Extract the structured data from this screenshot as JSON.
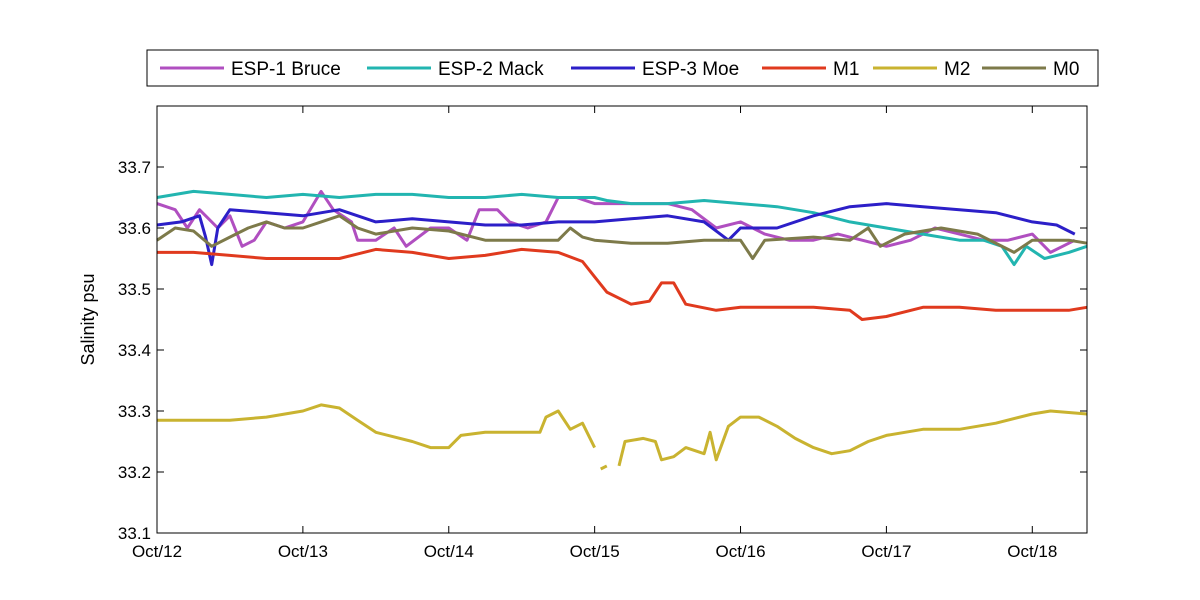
{
  "chart_data": {
    "type": "line",
    "title": "",
    "xlabel": "",
    "ylabel": "Salinity psu",
    "xlim": [
      "2012-10-12 00:00",
      "2012-10-18 09:00"
    ],
    "ylim": [
      33.1,
      33.8
    ],
    "x_tick_labels": [
      "Oct/12",
      "Oct/13",
      "Oct/14",
      "Oct/15",
      "Oct/16",
      "Oct/17",
      "Oct/18"
    ],
    "x_tick_dates": [
      "2012-10-12",
      "2012-10-13",
      "2012-10-14",
      "2012-10-15",
      "2012-10-16",
      "2012-10-17",
      "2012-10-18"
    ],
    "y_ticks": [
      33.1,
      33.2,
      33.3,
      33.4,
      33.5,
      33.6,
      33.7
    ],
    "y_tick_labels": [
      "33.1",
      "33.2",
      "33.3",
      "33.4",
      "33.5",
      "33.6",
      "33.7"
    ],
    "grid": false,
    "legend_position": "top-outside",
    "series": [
      {
        "name": "ESP-1 Bruce",
        "color": "#b04fc0",
        "points": [
          [
            "2012-10-12 00:00",
            33.64
          ],
          [
            "2012-10-12 03:00",
            33.63
          ],
          [
            "2012-10-12 05:00",
            33.6
          ],
          [
            "2012-10-12 07:00",
            33.63
          ],
          [
            "2012-10-12 10:00",
            33.6
          ],
          [
            "2012-10-12 12:00",
            33.62
          ],
          [
            "2012-10-12 14:00",
            33.57
          ],
          [
            "2012-10-12 16:00",
            33.58
          ],
          [
            "2012-10-12 18:00",
            33.61
          ],
          [
            "2012-10-12 21:00",
            33.6
          ],
          [
            "2012-10-13 00:00",
            33.61
          ],
          [
            "2012-10-13 03:00",
            33.66
          ],
          [
            "2012-10-13 05:00",
            33.63
          ],
          [
            "2012-10-13 08:00",
            33.61
          ],
          [
            "2012-10-13 09:00",
            33.58
          ],
          [
            "2012-10-13 12:00",
            33.58
          ],
          [
            "2012-10-13 15:00",
            33.6
          ],
          [
            "2012-10-13 17:00",
            33.57
          ],
          [
            "2012-10-13 21:00",
            33.6
          ],
          [
            "2012-10-14 00:00",
            33.6
          ],
          [
            "2012-10-14 03:00",
            33.58
          ],
          [
            "2012-10-14 05:00",
            33.63
          ],
          [
            "2012-10-14 08:00",
            33.63
          ],
          [
            "2012-10-14 10:00",
            33.61
          ],
          [
            "2012-10-14 13:00",
            33.6
          ],
          [
            "2012-10-14 16:00",
            33.61
          ],
          [
            "2012-10-14 18:00",
            33.65
          ],
          [
            "2012-10-14 21:00",
            33.65
          ],
          [
            "2012-10-15 00:00",
            33.64
          ],
          [
            "2012-10-15 04:00",
            33.64
          ],
          [
            "2012-10-15 08:00",
            33.64
          ],
          [
            "2012-10-15 12:00",
            33.64
          ],
          [
            "2012-10-15 16:00",
            33.63
          ],
          [
            "2012-10-15 20:00",
            33.6
          ],
          [
            "2012-10-16 00:00",
            33.61
          ],
          [
            "2012-10-16 04:00",
            33.59
          ],
          [
            "2012-10-16 08:00",
            33.58
          ],
          [
            "2012-10-16 12:00",
            33.58
          ],
          [
            "2012-10-16 16:00",
            33.59
          ],
          [
            "2012-10-16 20:00",
            33.58
          ],
          [
            "2012-10-17 00:00",
            33.57
          ],
          [
            "2012-10-17 04:00",
            33.58
          ],
          [
            "2012-10-17 08:00",
            33.6
          ],
          [
            "2012-10-17 12:00",
            33.59
          ],
          [
            "2012-10-17 16:00",
            33.58
          ],
          [
            "2012-10-17 20:00",
            33.58
          ],
          [
            "2012-10-18 00:00",
            33.59
          ],
          [
            "2012-10-18 03:00",
            33.56
          ],
          [
            "2012-10-18 05:00",
            33.57
          ],
          [
            "2012-10-18 07:00",
            33.58
          ]
        ]
      },
      {
        "name": "ESP-2 Mack",
        "color": "#22b5b0",
        "points": [
          [
            "2012-10-12 00:00",
            33.65
          ],
          [
            "2012-10-12 06:00",
            33.66
          ],
          [
            "2012-10-12 12:00",
            33.655
          ],
          [
            "2012-10-12 18:00",
            33.65
          ],
          [
            "2012-10-13 00:00",
            33.655
          ],
          [
            "2012-10-13 06:00",
            33.65
          ],
          [
            "2012-10-13 12:00",
            33.655
          ],
          [
            "2012-10-13 18:00",
            33.655
          ],
          [
            "2012-10-14 00:00",
            33.65
          ],
          [
            "2012-10-14 06:00",
            33.65
          ],
          [
            "2012-10-14 12:00",
            33.655
          ],
          [
            "2012-10-14 18:00",
            33.65
          ],
          [
            "2012-10-15 00:00",
            33.65
          ],
          [
            "2012-10-15 02:00",
            33.645
          ],
          [
            "2012-10-15 06:00",
            33.64
          ],
          [
            "2012-10-15 12:00",
            33.64
          ],
          [
            "2012-10-15 18:00",
            33.645
          ],
          [
            "2012-10-16 00:00",
            33.64
          ],
          [
            "2012-10-16 06:00",
            33.635
          ],
          [
            "2012-10-16 12:00",
            33.625
          ],
          [
            "2012-10-16 18:00",
            33.61
          ],
          [
            "2012-10-17 00:00",
            33.6
          ],
          [
            "2012-10-17 06:00",
            33.59
          ],
          [
            "2012-10-17 12:00",
            33.58
          ],
          [
            "2012-10-17 16:00",
            33.58
          ],
          [
            "2012-10-17 19:00",
            33.57
          ],
          [
            "2012-10-17 21:00",
            33.54
          ],
          [
            "2012-10-17 23:00",
            33.57
          ],
          [
            "2012-10-18 02:00",
            33.55
          ],
          [
            "2012-10-18 06:00",
            33.56
          ],
          [
            "2012-10-18 09:00",
            33.57
          ]
        ]
      },
      {
        "name": "ESP-3 Moe",
        "color": "#2c1fc8",
        "points": [
          [
            "2012-10-12 00:00",
            33.605
          ],
          [
            "2012-10-12 04:00",
            33.61
          ],
          [
            "2012-10-12 07:00",
            33.62
          ],
          [
            "2012-10-12 08:00",
            33.585
          ],
          [
            "2012-10-12 09:00",
            33.54
          ],
          [
            "2012-10-12 10:00",
            33.6
          ],
          [
            "2012-10-12 12:00",
            33.63
          ],
          [
            "2012-10-12 18:00",
            33.625
          ],
          [
            "2012-10-13 00:00",
            33.62
          ],
          [
            "2012-10-13 06:00",
            33.63
          ],
          [
            "2012-10-13 12:00",
            33.61
          ],
          [
            "2012-10-13 18:00",
            33.615
          ],
          [
            "2012-10-14 00:00",
            33.61
          ],
          [
            "2012-10-14 06:00",
            33.605
          ],
          [
            "2012-10-14 12:00",
            33.605
          ],
          [
            "2012-10-14 18:00",
            33.61
          ],
          [
            "2012-10-15 00:00",
            33.61
          ],
          [
            "2012-10-15 06:00",
            33.615
          ],
          [
            "2012-10-15 12:00",
            33.62
          ],
          [
            "2012-10-15 18:00",
            33.61
          ],
          [
            "2012-10-15 22:00",
            33.58
          ],
          [
            "2012-10-16 00:00",
            33.6
          ],
          [
            "2012-10-16 06:00",
            33.6
          ],
          [
            "2012-10-16 12:00",
            33.62
          ],
          [
            "2012-10-16 18:00",
            33.635
          ],
          [
            "2012-10-17 00:00",
            33.64
          ],
          [
            "2012-10-17 06:00",
            33.635
          ],
          [
            "2012-10-17 12:00",
            33.63
          ],
          [
            "2012-10-17 18:00",
            33.625
          ],
          [
            "2012-10-18 00:00",
            33.61
          ],
          [
            "2012-10-18 04:00",
            33.605
          ],
          [
            "2012-10-18 07:00",
            33.59
          ]
        ]
      },
      {
        "name": "M1",
        "color": "#e03a1e",
        "points": [
          [
            "2012-10-12 00:00",
            33.56
          ],
          [
            "2012-10-12 06:00",
            33.56
          ],
          [
            "2012-10-12 12:00",
            33.555
          ],
          [
            "2012-10-12 18:00",
            33.55
          ],
          [
            "2012-10-13 00:00",
            33.55
          ],
          [
            "2012-10-13 06:00",
            33.55
          ],
          [
            "2012-10-13 12:00",
            33.565
          ],
          [
            "2012-10-13 18:00",
            33.56
          ],
          [
            "2012-10-14 00:00",
            33.55
          ],
          [
            "2012-10-14 06:00",
            33.555
          ],
          [
            "2012-10-14 12:00",
            33.565
          ],
          [
            "2012-10-14 18:00",
            33.56
          ],
          [
            "2012-10-14 22:00",
            33.545
          ],
          [
            "2012-10-15 00:00",
            33.52
          ],
          [
            "2012-10-15 02:00",
            33.495
          ],
          [
            "2012-10-15 06:00",
            33.475
          ],
          [
            "2012-10-15 09:00",
            33.48
          ],
          [
            "2012-10-15 11:00",
            33.51
          ],
          [
            "2012-10-15 13:00",
            33.51
          ],
          [
            "2012-10-15 15:00",
            33.475
          ],
          [
            "2012-10-15 20:00",
            33.465
          ],
          [
            "2012-10-16 00:00",
            33.47
          ],
          [
            "2012-10-16 06:00",
            33.47
          ],
          [
            "2012-10-16 12:00",
            33.47
          ],
          [
            "2012-10-16 18:00",
            33.465
          ],
          [
            "2012-10-16 20:00",
            33.45
          ],
          [
            "2012-10-17 00:00",
            33.455
          ],
          [
            "2012-10-17 06:00",
            33.47
          ],
          [
            "2012-10-17 12:00",
            33.47
          ],
          [
            "2012-10-17 18:00",
            33.465
          ],
          [
            "2012-10-18 00:00",
            33.465
          ],
          [
            "2012-10-18 06:00",
            33.465
          ],
          [
            "2012-10-18 09:00",
            33.47
          ]
        ]
      },
      {
        "name": "M2",
        "color": "#c9b330",
        "points": [
          [
            "2012-10-12 00:00",
            33.285
          ],
          [
            "2012-10-12 06:00",
            33.285
          ],
          [
            "2012-10-12 12:00",
            33.285
          ],
          [
            "2012-10-12 18:00",
            33.29
          ],
          [
            "2012-10-13 00:00",
            33.3
          ],
          [
            "2012-10-13 03:00",
            33.31
          ],
          [
            "2012-10-13 06:00",
            33.305
          ],
          [
            "2012-10-13 09:00",
            33.285
          ],
          [
            "2012-10-13 12:00",
            33.265
          ],
          [
            "2012-10-13 18:00",
            33.25
          ],
          [
            "2012-10-13 21:00",
            33.24
          ],
          [
            "2012-10-14 00:00",
            33.24
          ],
          [
            "2012-10-14 02:00",
            33.26
          ],
          [
            "2012-10-14 06:00",
            33.265
          ],
          [
            "2012-10-14 12:00",
            33.265
          ],
          [
            "2012-10-14 15:00",
            33.265
          ],
          [
            "2012-10-14 16:00",
            33.29
          ],
          [
            "2012-10-14 18:00",
            33.3
          ],
          [
            "2012-10-14 20:00",
            33.27
          ],
          [
            "2012-10-14 22:00",
            33.28
          ],
          [
            "2012-10-15 00:00",
            33.24
          ],
          null,
          [
            "2012-10-15 01:00",
            33.205
          ],
          [
            "2012-10-15 02:00",
            33.21
          ],
          null,
          [
            "2012-10-15 04:00",
            33.21
          ],
          [
            "2012-10-15 05:00",
            33.25
          ],
          [
            "2012-10-15 08:00",
            33.255
          ],
          [
            "2012-10-15 10:00",
            33.25
          ],
          [
            "2012-10-15 11:00",
            33.22
          ],
          [
            "2012-10-15 13:00",
            33.225
          ],
          [
            "2012-10-15 15:00",
            33.24
          ],
          [
            "2012-10-15 18:00",
            33.23
          ],
          [
            "2012-10-15 19:00",
            33.265
          ],
          [
            "2012-10-15 20:00",
            33.22
          ],
          [
            "2012-10-15 22:00",
            33.275
          ],
          [
            "2012-10-16 00:00",
            33.29
          ],
          [
            "2012-10-16 03:00",
            33.29
          ],
          [
            "2012-10-16 06:00",
            33.275
          ],
          [
            "2012-10-16 09:00",
            33.255
          ],
          [
            "2012-10-16 12:00",
            33.24
          ],
          [
            "2012-10-16 15:00",
            33.23
          ],
          [
            "2012-10-16 18:00",
            33.235
          ],
          [
            "2012-10-16 21:00",
            33.25
          ],
          [
            "2012-10-17 00:00",
            33.26
          ],
          [
            "2012-10-17 06:00",
            33.27
          ],
          [
            "2012-10-17 12:00",
            33.27
          ],
          [
            "2012-10-17 18:00",
            33.28
          ],
          [
            "2012-10-18 00:00",
            33.295
          ],
          [
            "2012-10-18 03:00",
            33.3
          ],
          [
            "2012-10-18 09:00",
            33.295
          ]
        ]
      },
      {
        "name": "M0",
        "color": "#7d7a4a",
        "points": [
          [
            "2012-10-12 00:00",
            33.58
          ],
          [
            "2012-10-12 03:00",
            33.6
          ],
          [
            "2012-10-12 06:00",
            33.595
          ],
          [
            "2012-10-12 09:00",
            33.57
          ],
          [
            "2012-10-12 12:00",
            33.585
          ],
          [
            "2012-10-12 15:00",
            33.6
          ],
          [
            "2012-10-12 18:00",
            33.61
          ],
          [
            "2012-10-12 21:00",
            33.6
          ],
          [
            "2012-10-13 00:00",
            33.6
          ],
          [
            "2012-10-13 03:00",
            33.61
          ],
          [
            "2012-10-13 06:00",
            33.62
          ],
          [
            "2012-10-13 09:00",
            33.6
          ],
          [
            "2012-10-13 12:00",
            33.59
          ],
          [
            "2012-10-13 18:00",
            33.6
          ],
          [
            "2012-10-14 00:00",
            33.595
          ],
          [
            "2012-10-14 06:00",
            33.58
          ],
          [
            "2012-10-14 12:00",
            33.58
          ],
          [
            "2012-10-14 18:00",
            33.58
          ],
          [
            "2012-10-14 20:00",
            33.6
          ],
          [
            "2012-10-14 22:00",
            33.585
          ],
          [
            "2012-10-15 00:00",
            33.58
          ],
          [
            "2012-10-15 06:00",
            33.575
          ],
          [
            "2012-10-15 12:00",
            33.575
          ],
          [
            "2012-10-15 18:00",
            33.58
          ],
          [
            "2012-10-16 00:00",
            33.58
          ],
          [
            "2012-10-16 02:00",
            33.55
          ],
          [
            "2012-10-16 04:00",
            33.58
          ],
          [
            "2012-10-16 12:00",
            33.585
          ],
          [
            "2012-10-16 18:00",
            33.58
          ],
          [
            "2012-10-16 21:00",
            33.6
          ],
          [
            "2012-10-16 23:00",
            33.57
          ],
          [
            "2012-10-17 03:00",
            33.59
          ],
          [
            "2012-10-17 09:00",
            33.6
          ],
          [
            "2012-10-17 15:00",
            33.59
          ],
          [
            "2012-10-17 21:00",
            33.56
          ],
          [
            "2012-10-18 00:00",
            33.58
          ],
          [
            "2012-10-18 06:00",
            33.58
          ],
          [
            "2012-10-18 09:00",
            33.575
          ]
        ]
      }
    ]
  }
}
